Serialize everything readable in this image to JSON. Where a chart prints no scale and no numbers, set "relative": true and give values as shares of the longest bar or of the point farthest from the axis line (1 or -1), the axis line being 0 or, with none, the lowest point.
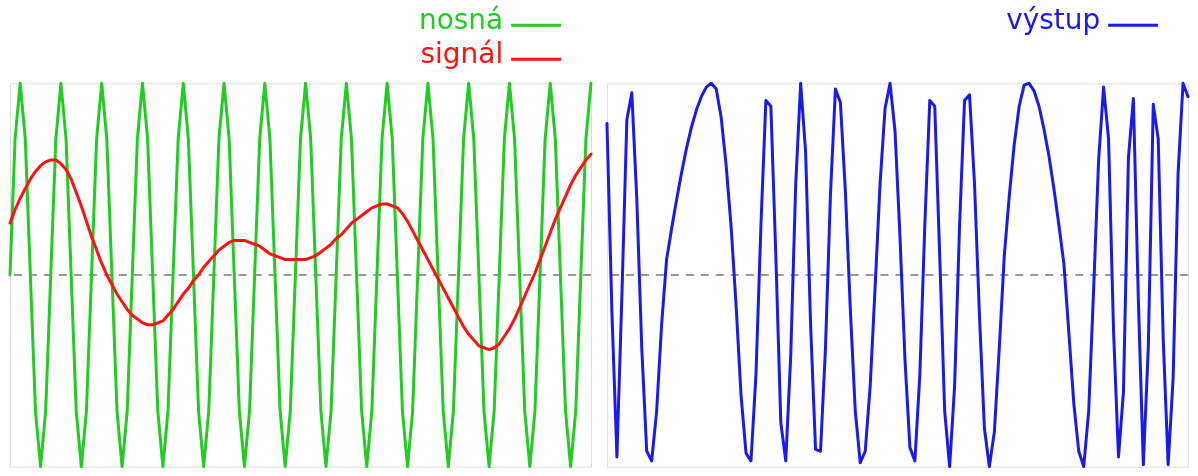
{
  "chart_data": [
    {
      "type": "line",
      "relative": true,
      "tick_labels": false,
      "legend": "top right",
      "ref_lines": [
        {
          "axis": "y",
          "value": 0,
          "color": "#999999",
          "line_style": "dashed"
        }
      ],
      "categories": [
        null,
        null,
        null,
        null,
        null,
        null,
        null,
        null,
        null,
        null,
        null,
        null,
        null,
        null,
        null,
        null,
        null,
        null,
        null,
        null,
        null,
        null,
        null,
        null,
        null,
        null,
        null,
        null,
        null,
        null,
        null,
        null,
        null,
        null,
        null,
        null,
        null,
        null,
        null,
        null,
        null,
        null,
        null,
        null,
        null,
        null,
        null,
        null,
        null,
        null,
        null,
        null,
        null,
        null,
        null,
        null,
        null,
        null,
        null,
        null,
        null,
        null,
        null,
        null,
        null,
        null,
        null,
        null,
        null,
        null,
        null,
        null,
        null,
        null,
        null,
        null,
        null,
        null,
        null,
        null,
        null,
        null,
        null,
        null,
        null,
        null,
        null,
        null,
        null,
        null,
        null,
        null,
        null,
        null,
        null,
        null,
        null,
        null,
        null,
        null,
        null,
        null,
        null,
        null,
        null,
        null,
        null,
        null,
        null,
        null,
        null,
        null,
        null,
        null,
        null
      ],
      "series": [
        {
          "name": "nosná",
          "color": "#22cc22",
          "values": [
            0,
            0.71,
            1,
            0.71,
            0,
            -0.71,
            -1,
            -0.71,
            0,
            0.71,
            1,
            0.71,
            0,
            -0.71,
            -1,
            -0.71,
            0,
            0.71,
            1,
            0.71,
            0,
            -0.71,
            -1,
            -0.71,
            0,
            0.71,
            1,
            0.71,
            0,
            -0.71,
            -1,
            -0.71,
            0,
            0.71,
            1,
            0.71,
            0,
            -0.71,
            -1,
            -0.71,
            0,
            0.71,
            1,
            0.71,
            0,
            -0.71,
            -1,
            -0.71,
            0,
            0.71,
            1,
            0.71,
            0,
            -0.71,
            -1,
            -0.71,
            0,
            0.71,
            1,
            0.71,
            0,
            -0.71,
            -1,
            -0.71,
            0,
            0.71,
            1,
            0.71,
            0,
            -0.71,
            -1,
            -0.71,
            0,
            0.71,
            1,
            0.71,
            0,
            -0.71,
            -1,
            -0.71,
            0,
            0.71,
            1,
            0.71,
            0,
            -0.71,
            -1,
            -0.71,
            0,
            0.71,
            1,
            0.71,
            0,
            -0.71,
            -1,
            -0.71,
            0,
            0.71,
            1,
            0.71,
            0,
            -0.71,
            -1,
            -0.71,
            0,
            0.71,
            1,
            0.71,
            0,
            -0.71,
            -1,
            -0.71,
            0,
            0.71,
            1
          ]
        },
        {
          "name": "signál",
          "color": "#ff1111",
          "values": [
            0.27,
            0.34,
            0.4,
            0.45,
            0.5,
            0.54,
            0.57,
            0.59,
            0.6,
            0.6,
            0.58,
            0.55,
            0.5,
            0.43,
            0.36,
            0.28,
            0.2,
            0.13,
            0.06,
            0.0,
            -0.05,
            -0.1,
            -0.14,
            -0.18,
            -0.21,
            -0.23,
            -0.25,
            -0.26,
            -0.26,
            -0.25,
            -0.24,
            -0.21,
            -0.18,
            -0.14,
            -0.1,
            -0.07,
            -0.03,
            0.0,
            0.04,
            0.07,
            0.1,
            0.13,
            0.15,
            0.17,
            0.18,
            0.18,
            0.18,
            0.17,
            0.16,
            0.15,
            0.13,
            0.11,
            0.1,
            0.09,
            0.08,
            0.08,
            0.08,
            0.08,
            0.08,
            0.09,
            0.1,
            0.12,
            0.14,
            0.16,
            0.19,
            0.21,
            0.24,
            0.27,
            0.29,
            0.31,
            0.33,
            0.35,
            0.36,
            0.37,
            0.37,
            0.36,
            0.35,
            0.32,
            0.28,
            0.23,
            0.18,
            0.13,
            0.08,
            0.03,
            -0.02,
            -0.07,
            -0.12,
            -0.17,
            -0.22,
            -0.27,
            -0.31,
            -0.34,
            -0.37,
            -0.38,
            -0.39,
            -0.38,
            -0.36,
            -0.32,
            -0.28,
            -0.23,
            -0.17,
            -0.11,
            -0.05,
            0.01,
            0.08,
            0.15,
            0.22,
            0.29,
            0.35,
            0.41,
            0.47,
            0.52,
            0.56,
            0.6,
            0.63
          ]
        }
      ]
    },
    {
      "type": "line",
      "relative": true,
      "tick_labels": false,
      "legend": "top right",
      "ref_lines": [
        {
          "axis": "y",
          "value": 0,
          "color": "#999999",
          "line_style": "dashed"
        }
      ],
      "categories": [
        null,
        null,
        null,
        null,
        null,
        null,
        null,
        null,
        null,
        null,
        null,
        null,
        null,
        null,
        null,
        null,
        null,
        null,
        null,
        null,
        null,
        null,
        null,
        null,
        null,
        null,
        null,
        null,
        null,
        null,
        null,
        null,
        null,
        null,
        null,
        null,
        null,
        null,
        null,
        null,
        null,
        null,
        null,
        null,
        null,
        null,
        null,
        null,
        null,
        null,
        null,
        null,
        null,
        null,
        null,
        null,
        null,
        null,
        null,
        null,
        null,
        null,
        null,
        null,
        null,
        null,
        null,
        null,
        null,
        null,
        null,
        null,
        null,
        null,
        null,
        null,
        null,
        null,
        null,
        null,
        null,
        null,
        null,
        null,
        null,
        null,
        null,
        null,
        null,
        null,
        null,
        null,
        null,
        null,
        null,
        null,
        null,
        null,
        null,
        null,
        null,
        null,
        null,
        null,
        null,
        null,
        null,
        null,
        null,
        null,
        null,
        null,
        null,
        null,
        null,
        null,
        null,
        null
      ],
      "series": [
        {
          "name": "výstup",
          "color": "#1a1aee",
          "values": [
            0.79,
            -0.2,
            -0.95,
            -0.11,
            0.81,
            0.95,
            0.4,
            -0.38,
            -0.92,
            -0.97,
            -0.71,
            -0.26,
            0.08,
            0.24,
            0.39,
            0.53,
            0.66,
            0.77,
            0.86,
            0.93,
            0.98,
            1.0,
            0.97,
            0.82,
            0.57,
            0.25,
            -0.16,
            -0.63,
            -0.93,
            -0.97,
            -0.52,
            0.26,
            0.91,
            0.88,
            0.1,
            -0.77,
            -0.97,
            -0.42,
            0.47,
            1.0,
            0.64,
            -0.26,
            -0.91,
            -0.92,
            -0.38,
            0.42,
            0.97,
            0.9,
            0.44,
            -0.18,
            -0.71,
            -0.98,
            -0.92,
            -0.58,
            -0.06,
            0.48,
            0.87,
            1.0,
            0.75,
            0.2,
            -0.44,
            -0.9,
            -0.97,
            -0.52,
            0.26,
            0.91,
            0.88,
            0.1,
            -0.71,
            -1.0,
            -0.58,
            0.26,
            0.91,
            0.94,
            0.48,
            -0.21,
            -0.8,
            -1.0,
            -0.82,
            -0.38,
            0.1,
            0.41,
            0.68,
            0.88,
            0.99,
            1.0,
            0.96,
            0.88,
            0.76,
            0.62,
            0.45,
            0.26,
            0.06,
            -0.3,
            -0.67,
            -0.92,
            -1.0,
            -0.71,
            -0.07,
            0.6,
            0.98,
            0.71,
            -0.29,
            -0.95,
            -0.61,
            0.61,
            0.92,
            -0.13,
            -0.99,
            -0.38,
            0.89,
            0.71,
            -0.33,
            -0.99,
            -0.54,
            0.53,
            1.0,
            0.93
          ]
        }
      ]
    }
  ]
}
